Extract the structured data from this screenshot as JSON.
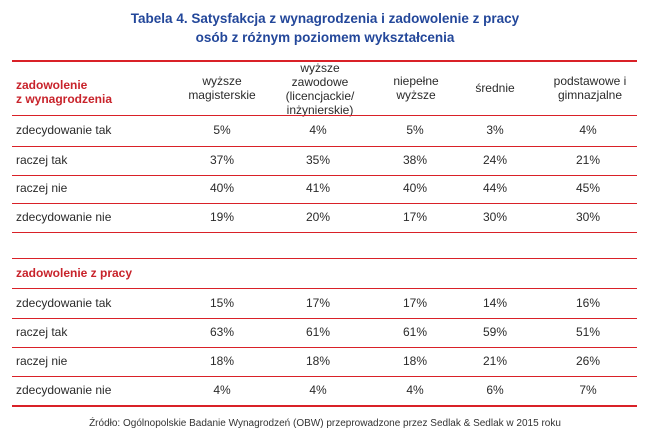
{
  "title": {
    "line1": "Tabela 4. Satysfakcja z wynagrodzenia i zadowolenie z pracy",
    "line2": "osób z różnym poziomem wykształcenia"
  },
  "section1": {
    "label_line1": "zadowolenie",
    "label_line2": "z wynagrodzenia"
  },
  "columns": [
    {
      "lines": [
        "wyższe",
        "magisterskie"
      ]
    },
    {
      "lines": [
        "wyższe",
        "zawodowe",
        "(licencjackie/",
        "inżynierskie)"
      ]
    },
    {
      "lines": [
        "niepełne",
        "wyższe"
      ]
    },
    {
      "lines": [
        "średnie"
      ]
    },
    {
      "lines": [
        "podstawowe i",
        "gimnazjalne"
      ]
    }
  ],
  "table1": [
    {
      "label": "zdecydowanie tak",
      "values": [
        "5%",
        "4%",
        "5%",
        "3%",
        "4%"
      ]
    },
    {
      "label": "raczej tak",
      "values": [
        "37%",
        "35%",
        "38%",
        "24%",
        "21%"
      ]
    },
    {
      "label": "raczej nie",
      "values": [
        "40%",
        "41%",
        "40%",
        "44%",
        "45%"
      ]
    },
    {
      "label": "zdecydowanie nie",
      "values": [
        "19%",
        "20%",
        "17%",
        "30%",
        "30%"
      ]
    }
  ],
  "section2": {
    "label": "zadowolenie z pracy"
  },
  "table2": [
    {
      "label": "zdecydowanie tak",
      "values": [
        "15%",
        "17%",
        "17%",
        "14%",
        "16%"
      ]
    },
    {
      "label": "raczej tak",
      "values": [
        "63%",
        "61%",
        "61%",
        "59%",
        "51%"
      ]
    },
    {
      "label": "raczej nie",
      "values": [
        "18%",
        "18%",
        "18%",
        "21%",
        "26%"
      ]
    },
    {
      "label": "zdecydowanie nie",
      "values": [
        "4%",
        "4%",
        "4%",
        "6%",
        "7%"
      ]
    }
  ],
  "source": "Źródło: Ogólnopolskie Badanie Wynagrodzeń (OBW) przeprowadzone przez Sedlak & Sedlak w 2015 roku"
}
